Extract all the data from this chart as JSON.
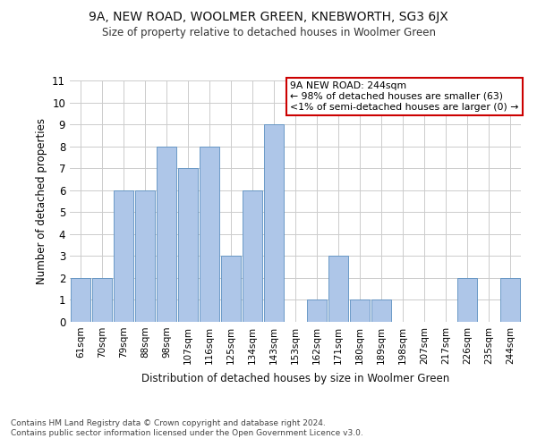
{
  "title": "9A, NEW ROAD, WOOLMER GREEN, KNEBWORTH, SG3 6JX",
  "subtitle": "Size of property relative to detached houses in Woolmer Green",
  "xlabel": "Distribution of detached houses by size in Woolmer Green",
  "ylabel": "Number of detached properties",
  "categories": [
    "61sqm",
    "70sqm",
    "79sqm",
    "88sqm",
    "98sqm",
    "107sqm",
    "116sqm",
    "125sqm",
    "134sqm",
    "143sqm",
    "153sqm",
    "162sqm",
    "171sqm",
    "180sqm",
    "189sqm",
    "198sqm",
    "207sqm",
    "217sqm",
    "226sqm",
    "235sqm",
    "244sqm"
  ],
  "values": [
    2,
    2,
    6,
    6,
    8,
    7,
    8,
    3,
    6,
    9,
    0,
    1,
    3,
    1,
    1,
    0,
    0,
    0,
    2,
    0,
    2
  ],
  "bar_color": "#aec6e8",
  "bar_edge_color": "#5a8fc0",
  "ylim": [
    0,
    11
  ],
  "yticks": [
    0,
    1,
    2,
    3,
    4,
    5,
    6,
    7,
    8,
    9,
    10,
    11
  ],
  "annotation_title": "9A NEW ROAD: 244sqm",
  "annotation_line1": "← 98% of detached houses are smaller (63)",
  "annotation_line2": "<1% of semi-detached houses are larger (0) →",
  "annotation_box_color": "#ffffff",
  "annotation_box_edgecolor": "#cc0000",
  "footer1": "Contains HM Land Registry data © Crown copyright and database right 2024.",
  "footer2": "Contains public sector information licensed under the Open Government Licence v3.0.",
  "background_color": "#ffffff",
  "grid_color": "#cccccc"
}
